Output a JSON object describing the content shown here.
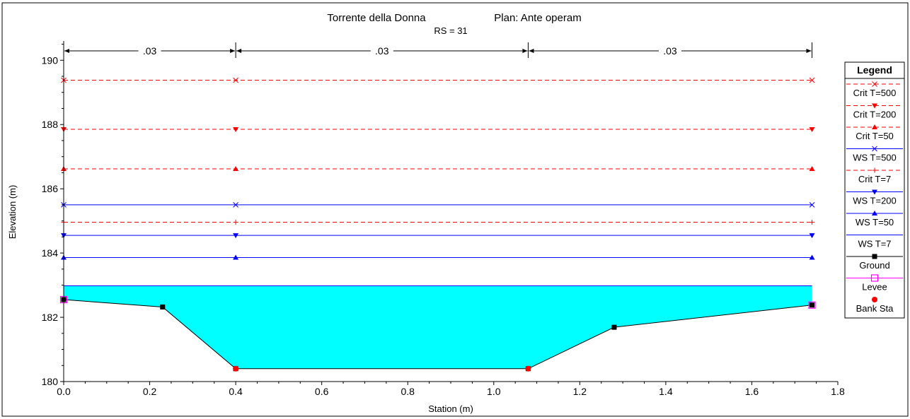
{
  "chart_data": {
    "type": "line",
    "title": "Torrente della Donna",
    "plan": "Plan: Ante operam",
    "subtitle": "RS = 31",
    "xlabel": "Station (m)",
    "ylabel": "Elevation (m)",
    "xlim": [
      0,
      1.8
    ],
    "ylim": [
      180,
      190.6
    ],
    "xticks": [
      0.0,
      0.2,
      0.4,
      0.6,
      0.8,
      1.0,
      1.2,
      1.4,
      1.6,
      1.8
    ],
    "xtick_labels": [
      "0.0",
      "0.2",
      "0.4",
      "0.6",
      "0.8",
      "1.0",
      "1.2",
      "1.4",
      "1.6",
      "1.8"
    ],
    "yticks": [
      180,
      182,
      184,
      186,
      188,
      190
    ],
    "ytick_labels": [
      "180",
      "182",
      "184",
      "186",
      "188",
      "190"
    ],
    "manning": [
      {
        "from": 0.0,
        "to": 0.4,
        "label": ".03"
      },
      {
        "from": 0.4,
        "to": 1.08,
        "label": ".03"
      },
      {
        "from": 1.08,
        "to": 1.74,
        "label": ".03"
      }
    ],
    "water_fill": {
      "elevation": 182.98,
      "color": "#00ffff"
    },
    "series": [
      {
        "name": "Crit T=500",
        "color": "#ff0000",
        "dash": true,
        "marker": "x",
        "x": [
          0.0,
          0.4,
          1.74
        ],
        "y": [
          189.38,
          189.38,
          189.38
        ]
      },
      {
        "name": "Crit T=200",
        "color": "#ff0000",
        "dash": true,
        "marker": "tri-down",
        "x": [
          0.0,
          0.4,
          1.74
        ],
        "y": [
          187.85,
          187.85,
          187.85
        ]
      },
      {
        "name": "Crit T=50",
        "color": "#ff0000",
        "dash": true,
        "marker": "tri-up",
        "x": [
          0.0,
          0.4,
          1.74
        ],
        "y": [
          186.62,
          186.62,
          186.62
        ]
      },
      {
        "name": "WS T=500",
        "color": "#0000ff",
        "dash": false,
        "marker": "x",
        "x": [
          0.0,
          0.4,
          1.74
        ],
        "y": [
          185.5,
          185.5,
          185.5
        ]
      },
      {
        "name": "Crit T=7",
        "color": "#ff0000",
        "dash": true,
        "marker": "plus",
        "x": [
          0.0,
          0.4,
          1.74
        ],
        "y": [
          184.96,
          184.96,
          184.96
        ]
      },
      {
        "name": "WS T=200",
        "color": "#0000ff",
        "dash": false,
        "marker": "tri-down",
        "x": [
          0.0,
          0.4,
          1.74
        ],
        "y": [
          184.55,
          184.55,
          184.55
        ]
      },
      {
        "name": "WS T=50",
        "color": "#0000ff",
        "dash": false,
        "marker": "tri-up",
        "x": [
          0.0,
          0.4,
          1.74
        ],
        "y": [
          183.86,
          183.86,
          183.86
        ]
      },
      {
        "name": "WS T=7",
        "color": "#0000ff",
        "dash": false,
        "marker": "none",
        "x": [
          0.0,
          1.74
        ],
        "y": [
          182.98,
          182.98
        ]
      },
      {
        "name": "Ground",
        "color": "#000000",
        "dash": false,
        "marker": "square",
        "x": [
          0.0,
          0.23,
          0.4,
          1.08,
          1.28,
          1.74
        ],
        "y": [
          182.55,
          182.32,
          180.4,
          180.4,
          181.69,
          182.38
        ]
      },
      {
        "name": "Levee",
        "color": "#ff00ff",
        "dash": false,
        "marker": "open-square",
        "x": [
          0.0,
          1.74
        ],
        "y": [
          182.55,
          182.38
        ]
      },
      {
        "name": "Bank Sta",
        "color": "#ff0000",
        "dash": false,
        "marker": "dot",
        "x": [
          0.4,
          1.08
        ],
        "y": [
          180.4,
          180.4
        ]
      }
    ],
    "legend": {
      "title": "Legend",
      "placement": "right",
      "entries": [
        "Crit T=500",
        "Crit T=200",
        "Crit T=50",
        "WS T=500",
        "Crit T=7",
        "WS T=200",
        "WS T=50",
        "WS T=7",
        "Ground",
        "Levee",
        "Bank Sta"
      ]
    },
    "grid": false
  }
}
